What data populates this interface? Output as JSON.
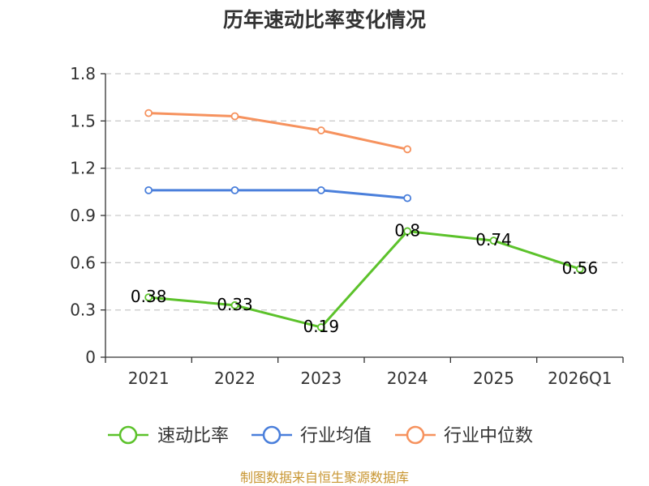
{
  "chart_data": {
    "type": "line",
    "title": "历年速动比率变化情况",
    "xlabel": "",
    "ylabel": "",
    "categories": [
      "2021",
      "2022",
      "2023",
      "2024",
      "2025",
      "2026Q1"
    ],
    "ylim": [
      0,
      1.8
    ],
    "yticks": [
      "0",
      "0.3",
      "0.6",
      "0.9",
      "1.2",
      "1.5",
      "1.8"
    ],
    "grid": true,
    "legend_position": "bottom",
    "series": [
      {
        "name": "速动比率",
        "color": "#5cc22b",
        "values": [
          0.38,
          0.33,
          0.19,
          0.8,
          0.74,
          0.56
        ],
        "labels": [
          "0.38",
          "0.33",
          "0.19",
          "0.8",
          "0.74",
          "0.56"
        ]
      },
      {
        "name": "行业均值",
        "color": "#4a7fdb",
        "values": [
          1.06,
          1.06,
          1.06,
          1.01,
          null,
          null
        ]
      },
      {
        "name": "行业中位数",
        "color": "#f6925e",
        "values": [
          1.55,
          1.53,
          1.44,
          1.32,
          null,
          null
        ]
      }
    ]
  },
  "source": "制图数据来自恒生聚源数据库"
}
